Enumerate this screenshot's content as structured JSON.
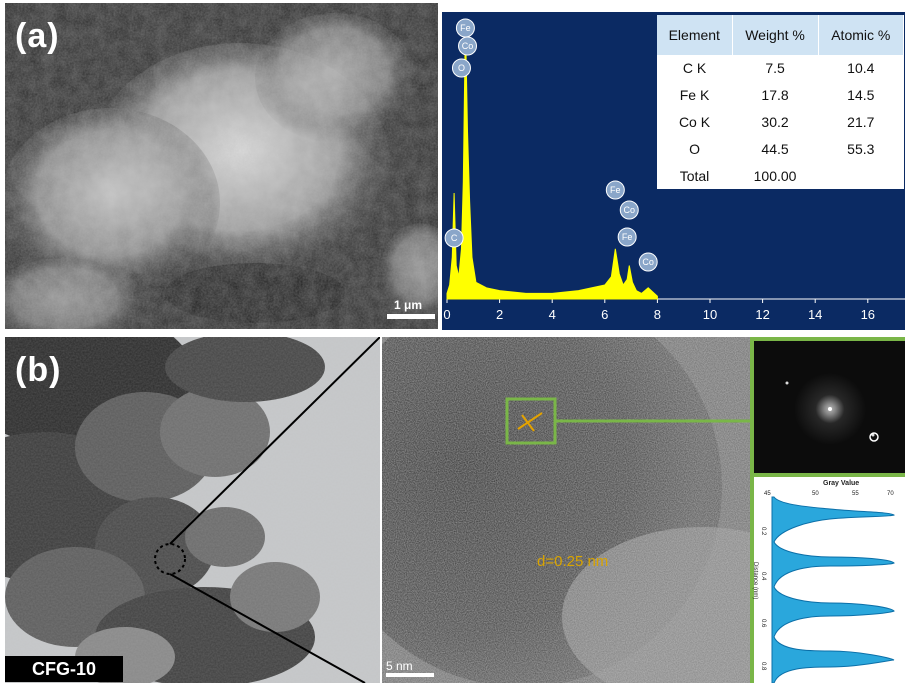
{
  "panel_a": {
    "label": "(a)",
    "scale_bar": "1 μm"
  },
  "eds": {
    "table": {
      "headers": [
        "Element",
        "Weight %",
        "Atomic %"
      ],
      "rows": [
        [
          "C K",
          "7.5",
          "10.4"
        ],
        [
          "Fe K",
          "17.8",
          "14.5"
        ],
        [
          "Co K",
          "30.2",
          "21.7"
        ],
        [
          "O",
          "44.5",
          "55.3"
        ],
        [
          "Total",
          "100.00",
          ""
        ]
      ]
    },
    "peak_labels": [
      "Fe",
      "Co",
      "O",
      "C",
      "Fe",
      "Co",
      "Fe",
      "Co"
    ],
    "colors": {
      "background": "#0b2a63",
      "spectrum": "#ffff00"
    }
  },
  "panel_b": {
    "label": "(b)",
    "sample_label": "CFG-10",
    "scale_bar": "5 nm",
    "d_spacing": "d=0.25 nm",
    "profile_title": "Gray Value",
    "profile_axis_label": "Distance (nm)",
    "accent_color": "#7ab648"
  },
  "chart_data": {
    "type": "line",
    "title": "",
    "xlabel": "",
    "ylabel": "",
    "x_ticks": [
      "0",
      "2",
      "4",
      "6",
      "8",
      "10",
      "12",
      "14",
      "16"
    ],
    "xlim": [
      0,
      17.5
    ],
    "series": [
      {
        "x": [
          0.0,
          0.1,
          0.2,
          0.27,
          0.35,
          0.45,
          0.55,
          0.62,
          0.7,
          0.78,
          0.86,
          0.95,
          1.1,
          1.5,
          2.0,
          3.0,
          4.0,
          5.0,
          6.0,
          6.25,
          6.4,
          6.55,
          6.7,
          6.85,
          6.93,
          7.05,
          7.2,
          7.4,
          7.65,
          8.0
        ],
        "y": [
          0.02,
          0.05,
          0.15,
          0.38,
          0.12,
          0.08,
          0.18,
          0.42,
          1.0,
          0.6,
          0.35,
          0.15,
          0.06,
          0.04,
          0.03,
          0.02,
          0.02,
          0.03,
          0.05,
          0.08,
          0.18,
          0.09,
          0.05,
          0.07,
          0.12,
          0.06,
          0.03,
          0.02,
          0.04,
          0.01
        ]
      }
    ]
  }
}
